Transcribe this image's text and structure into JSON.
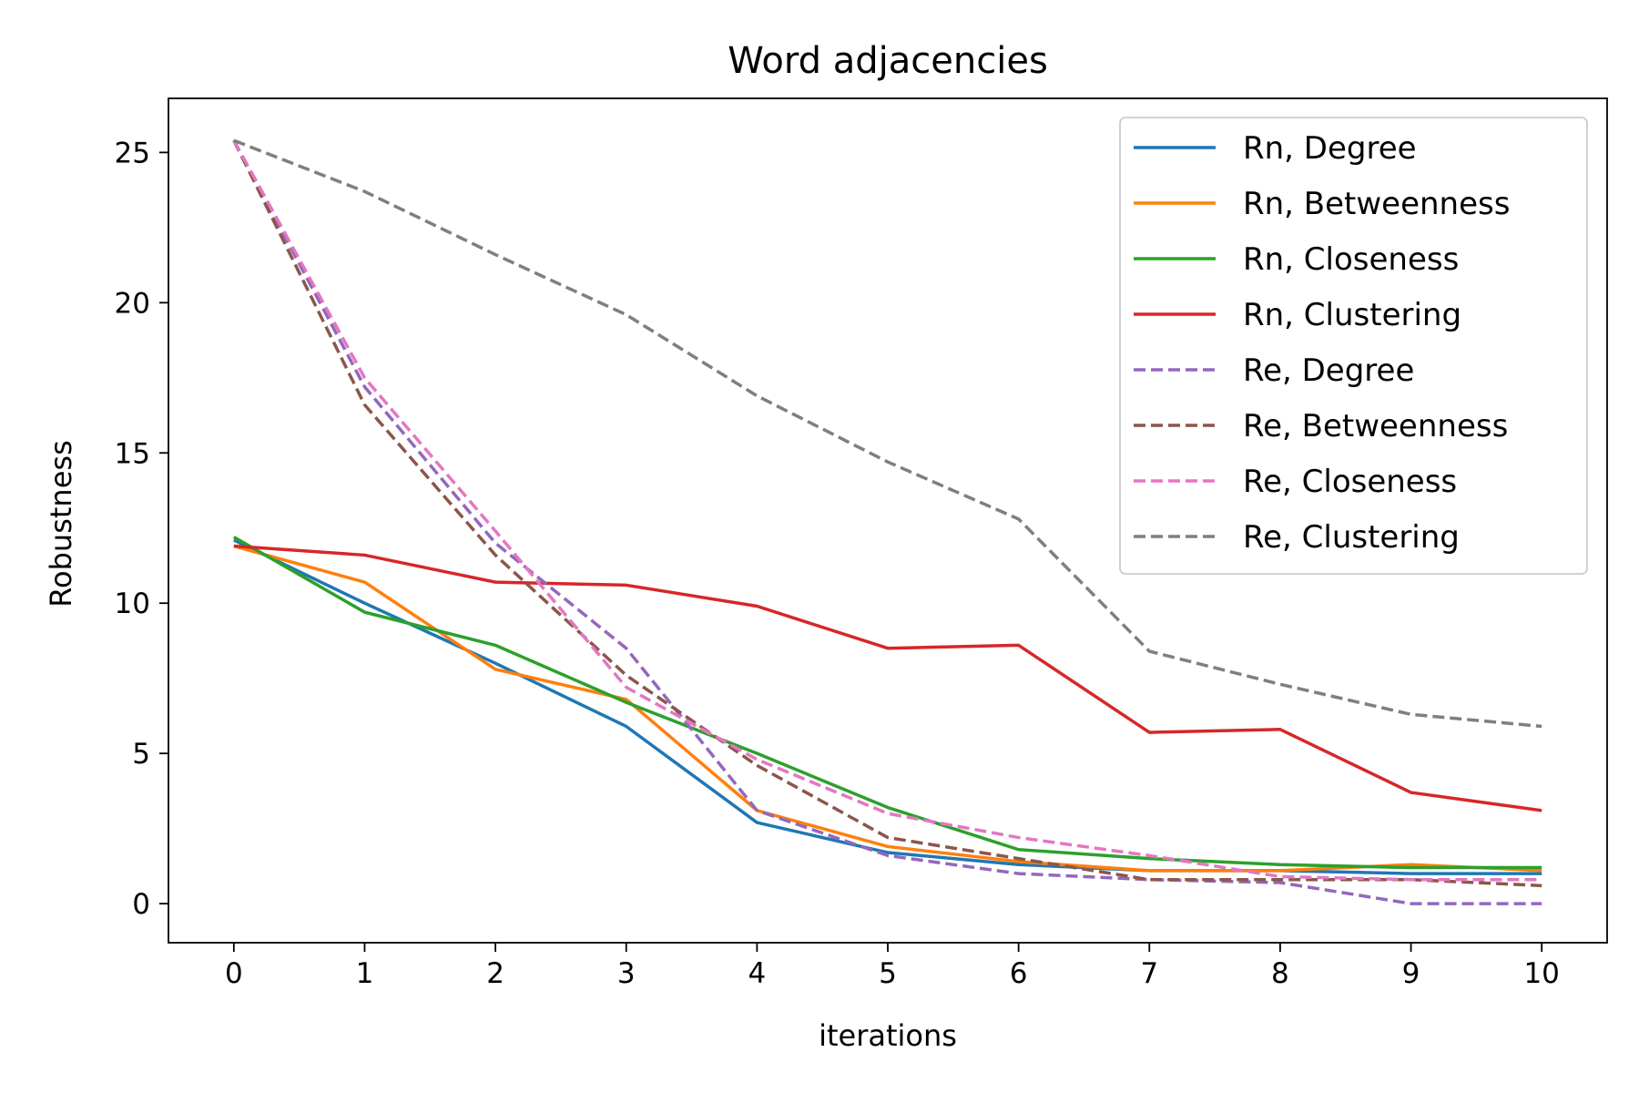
{
  "chart_data": {
    "type": "line",
    "title": "Word adjacencies",
    "xlabel": "iterations",
    "ylabel": "Robustness",
    "x": [
      0,
      1,
      2,
      3,
      4,
      5,
      6,
      7,
      8,
      9,
      10
    ],
    "xlim": [
      -0.5,
      10.5
    ],
    "ylim": [
      -1.3,
      26.8
    ],
    "xticks": [
      0,
      1,
      2,
      3,
      4,
      5,
      6,
      7,
      8,
      9,
      10
    ],
    "yticks": [
      0,
      5,
      10,
      15,
      20,
      25
    ],
    "grid": false,
    "legend_position": "top-right",
    "series": [
      {
        "name": "Rn, Degree",
        "color": "#1f77b4",
        "dash": "solid",
        "values": [
          12.1,
          10.0,
          8.0,
          5.9,
          2.7,
          1.7,
          1.3,
          1.1,
          1.1,
          1.0,
          1.0
        ]
      },
      {
        "name": "Rn, Betweenness",
        "color": "#ff7f0e",
        "dash": "solid",
        "values": [
          11.9,
          10.7,
          7.8,
          6.8,
          3.1,
          1.9,
          1.4,
          1.1,
          1.1,
          1.3,
          1.1
        ]
      },
      {
        "name": "Rn, Closeness",
        "color": "#2ca02c",
        "dash": "solid",
        "values": [
          12.2,
          9.7,
          8.6,
          6.7,
          5.0,
          3.2,
          1.8,
          1.5,
          1.3,
          1.2,
          1.2
        ]
      },
      {
        "name": "Rn, Clustering",
        "color": "#d62728",
        "dash": "solid",
        "values": [
          11.9,
          11.6,
          10.7,
          10.6,
          9.9,
          8.5,
          8.6,
          5.7,
          5.8,
          3.7,
          3.1
        ]
      },
      {
        "name": "Re, Degree",
        "color": "#9467bd",
        "dash": "dashed",
        "values": [
          25.4,
          17.2,
          12.0,
          8.5,
          3.1,
          1.6,
          1.0,
          0.8,
          0.7,
          0.0,
          0.0
        ]
      },
      {
        "name": "Re, Betweenness",
        "color": "#8c564b",
        "dash": "dashed",
        "values": [
          25.4,
          16.6,
          11.6,
          7.6,
          4.6,
          2.2,
          1.5,
          0.8,
          0.8,
          0.8,
          0.6
        ]
      },
      {
        "name": "Re, Closeness",
        "color": "#e377c2",
        "dash": "dashed",
        "values": [
          25.4,
          17.5,
          12.4,
          7.2,
          4.8,
          3.0,
          2.2,
          1.6,
          0.9,
          0.8,
          0.8
        ]
      },
      {
        "name": "Re, Clustering",
        "color": "#7f7f7f",
        "dash": "dashed",
        "values": [
          25.4,
          23.7,
          21.6,
          19.6,
          16.9,
          14.7,
          12.8,
          8.4,
          7.3,
          6.3,
          5.9
        ]
      }
    ]
  }
}
